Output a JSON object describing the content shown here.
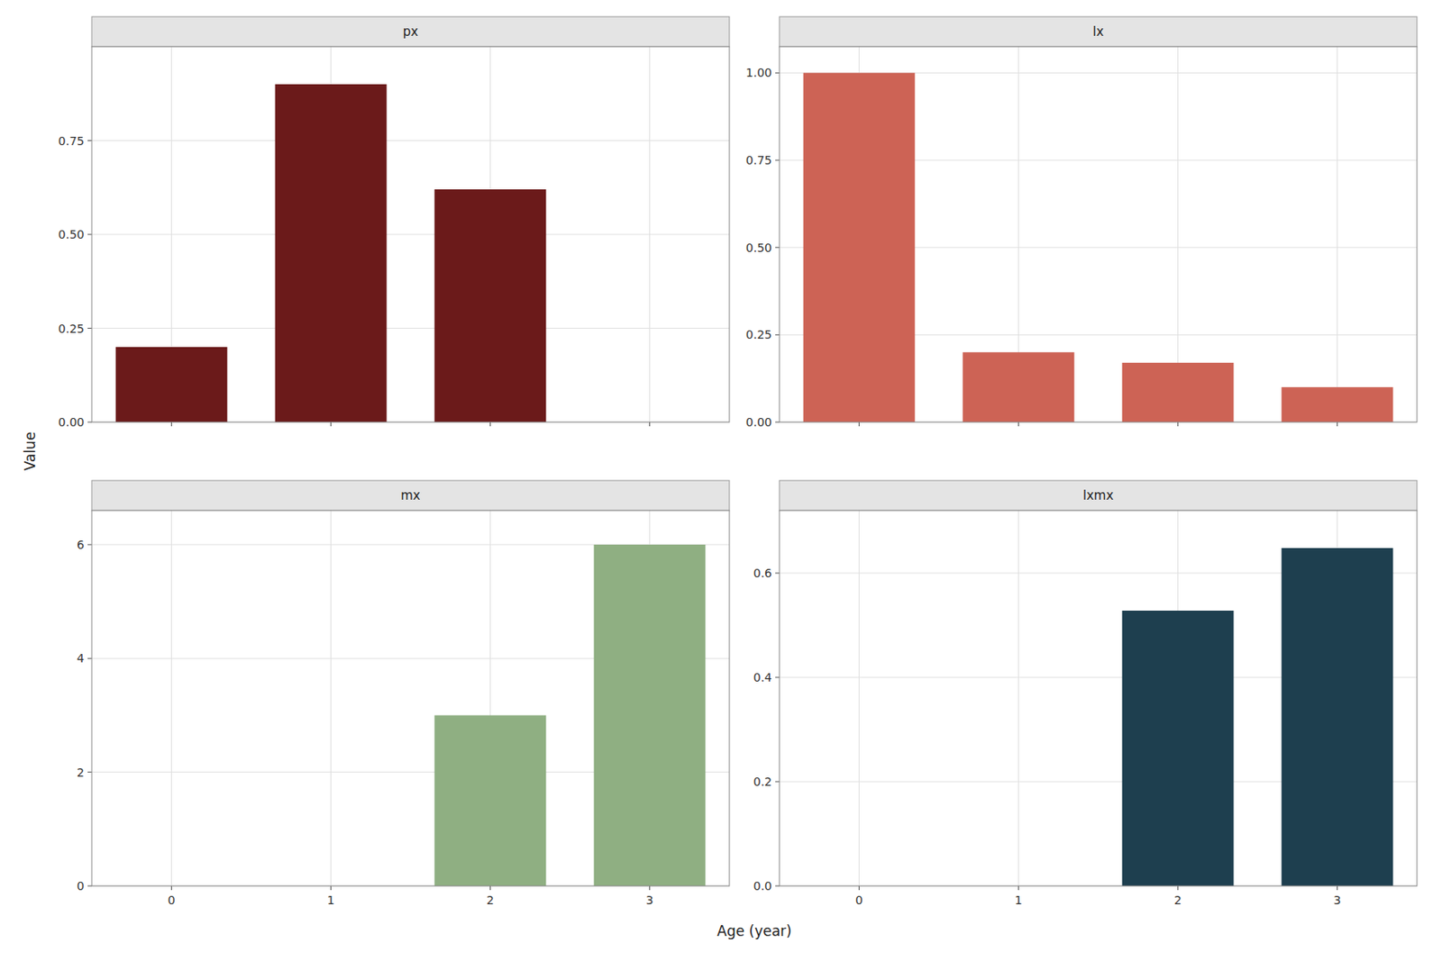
{
  "chart_data": [
    {
      "type": "bar",
      "title": "px",
      "x": [
        0,
        1,
        2
      ],
      "values": [
        0.2,
        0.9,
        0.62
      ],
      "color": "#6B1A1A",
      "xlim": [
        -0.5,
        3.5
      ],
      "ylim": [
        0,
        1.0
      ],
      "xticks": [
        0,
        1,
        2,
        3
      ],
      "yticks": [
        {
          "value": 0.0,
          "label": "0.00"
        },
        0.25,
        {
          "value": 0.5,
          "label": "0.50"
        },
        0.75
      ],
      "grid": true,
      "tick_labels": "y"
    },
    {
      "type": "bar",
      "title": "lx",
      "x": [
        0,
        1,
        2,
        3
      ],
      "values": [
        1.0,
        0.2,
        0.17,
        0.1
      ],
      "color": "#CD6355",
      "xlim": [
        -0.5,
        3.5
      ],
      "ylim": [
        0,
        1.075
      ],
      "xticks": [
        0,
        1,
        2,
        3
      ],
      "yticks": [
        {
          "value": 0.0,
          "label": "0.00"
        },
        0.25,
        {
          "value": 0.5,
          "label": "0.50"
        },
        0.75,
        {
          "value": 1.0,
          "label": "1.00"
        }
      ],
      "grid": true,
      "tick_labels": "y"
    },
    {
      "type": "bar",
      "title": "mx",
      "x": [
        2,
        3
      ],
      "values": [
        3,
        6
      ],
      "color": "#8FAF82",
      "xlim": [
        -0.5,
        3.5
      ],
      "ylim": [
        0,
        6.6
      ],
      "xticks": [
        0,
        1,
        2,
        3
      ],
      "yticks": [
        0,
        2,
        4,
        6
      ],
      "grid": true
    },
    {
      "type": "bar",
      "title": "lxmx",
      "x": [
        2,
        3
      ],
      "values": [
        0.528,
        0.648
      ],
      "color": "#1E3F4F",
      "xlim": [
        -0.5,
        3.5
      ],
      "ylim": [
        0,
        0.72
      ],
      "xticks": [
        0,
        1,
        2,
        3
      ],
      "yticks": [
        {
          "value": 0.0,
          "label": "0.0"
        },
        0.2,
        0.4,
        0.6
      ],
      "grid": true
    }
  ],
  "xlabel": "Age (year)",
  "ylabel": "Value"
}
